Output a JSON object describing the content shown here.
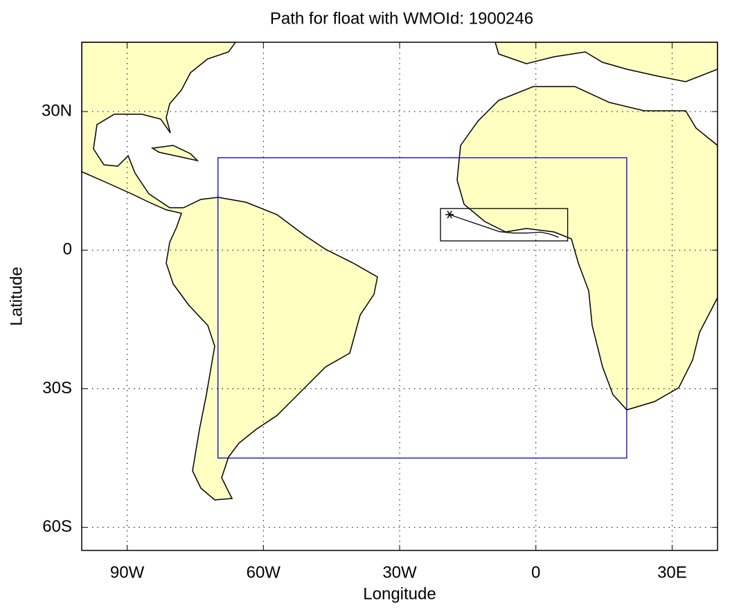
{
  "chart_data": {
    "type": "map",
    "title": "Path for float with WMOId: 1900246",
    "x_label": "Longitude",
    "y_label": "Latitude",
    "xlim": [
      -100,
      40
    ],
    "ylim": [
      -65,
      45
    ],
    "xticks": [
      {
        "value": -90,
        "label": "90W"
      },
      {
        "value": -60,
        "label": "60W"
      },
      {
        "value": -30,
        "label": "30W"
      },
      0,
      {
        "value": 30,
        "label": "30E"
      }
    ],
    "yticks": [
      {
        "value": 30,
        "label": "30N"
      },
      0,
      {
        "value": -30,
        "label": "30S"
      },
      {
        "value": -60,
        "label": "60S"
      }
    ],
    "grid": true,
    "boxes": [
      {
        "xlim": [
          -70,
          20
        ],
        "ylim": [
          -45,
          20
        ],
        "color": "#0000cc"
      },
      {
        "xlim": [
          -21,
          7
        ],
        "ylim": [
          2,
          9
        ],
        "color": "#000000"
      }
    ],
    "path": {
      "x": [
        -19,
        -17,
        -14,
        -11,
        -8,
        -5,
        -2,
        1,
        3,
        5
      ],
      "y": [
        7.7,
        7,
        6,
        5,
        4,
        3.7,
        3.7,
        3.9,
        3.5,
        2.8
      ],
      "color": "#000000"
    }
  }
}
